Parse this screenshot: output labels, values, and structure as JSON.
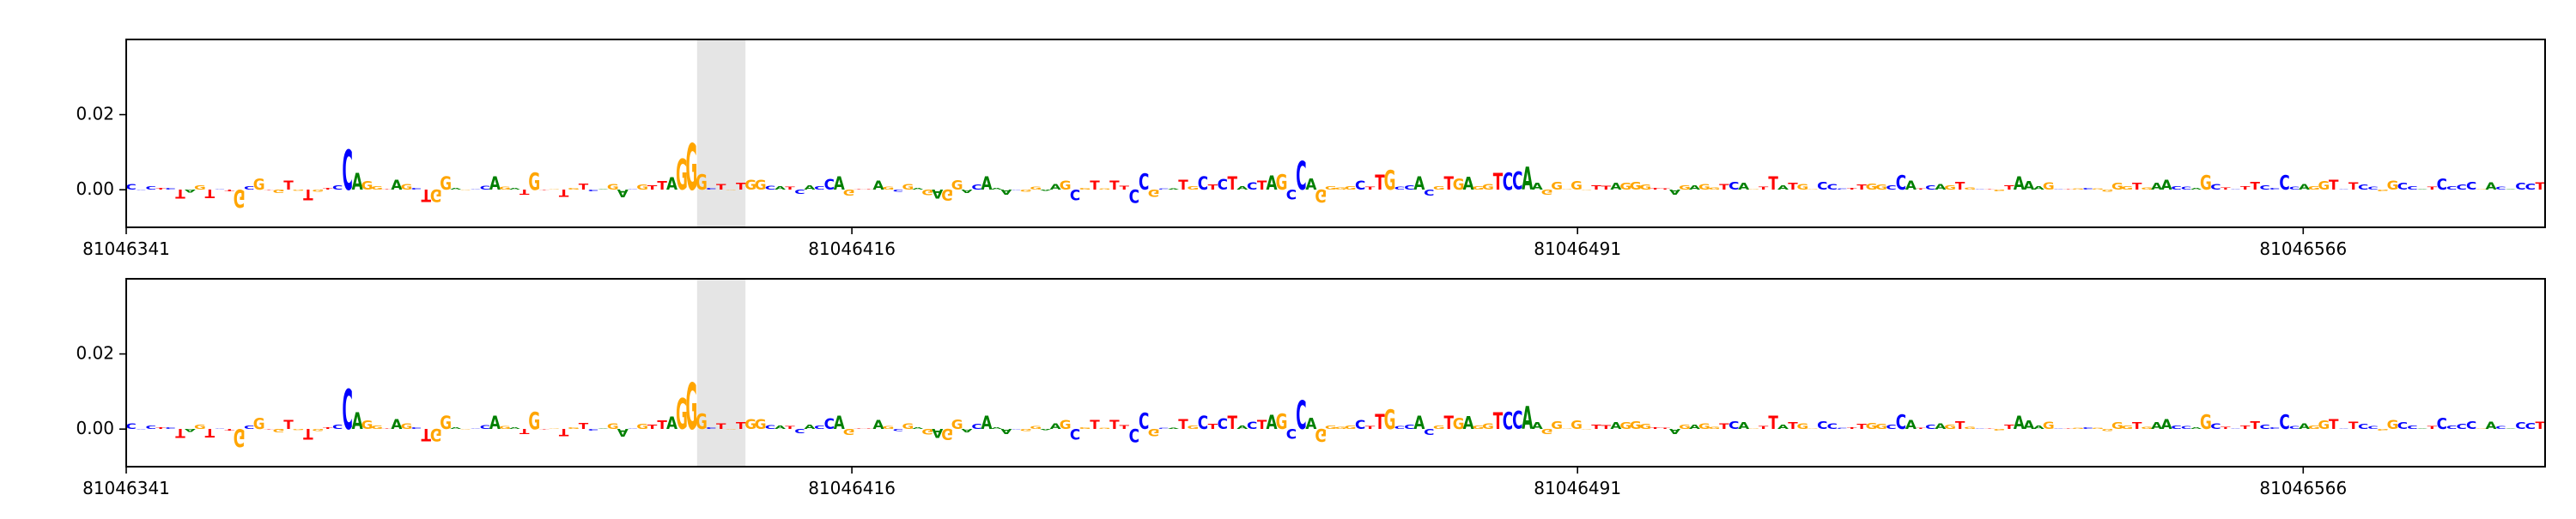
{
  "chart_data": [
    {
      "type": "sequence-logo",
      "track": "top",
      "ylim": [
        -0.01,
        0.04
      ],
      "ytick_labels": [
        "0.02",
        "0.00"
      ],
      "yticks": [
        0.02,
        0.0
      ],
      "xlim": [
        81046341,
        81046591
      ],
      "xtick_labels": [
        "81046341",
        "81046416",
        "81046491",
        "81046566"
      ],
      "xticks": [
        81046341,
        81046416,
        81046491,
        "81046566"
      ],
      "highlight": {
        "start": 81046400,
        "end": 81046405
      },
      "sequence": "CCCTCTAGTCTGCGTGTGTGTCCAGGTAGCTGGAGCCAGATGTGTGTCAGACGTTAGGGCTGTGGCATCACCAGTTAGCGAGAGGACAAACGGAAGCGTGTTCCGCATGCTCTACTAGCCAGGGGCTTGCCACGTGAGGTCCAAGGGGGTTAGGGTTAGAGGTCAGTTATGGCCCTTGGCCATCAGTGCTGTAAAGCTGCGGGGTGAACCAGCTCTTCCCCAGGTCTCCGGCCATCCCCGACACCT",
      "scores": [
        0.0014,
        -0.0001,
        0.0008,
        0.0004,
        0.0004,
        -0.0023,
        -0.0007,
        0.0011,
        -0.0022,
        0.0001,
        -0.0005,
        -0.0048,
        0.0008,
        0.0029,
        -0.0001,
        -0.0008,
        0.0023,
        -0.0003,
        -0.0028,
        -0.0006,
        0.0005,
        0.0011,
        0.0107,
        0.0045,
        0.0022,
        0.0008,
        0.0001,
        0.0026,
        0.0015,
        0.0005,
        -0.0032,
        -0.0033,
        0.0035,
        0.0005,
        -0.0002,
        0.0001,
        0.001,
        0.0035,
        0.0007,
        0.0004,
        -0.0013,
        0.0046,
        -0.0001,
        0.0002,
        -0.0019,
        0.0005,
        0.0016,
        -0.0004,
        0.0001,
        0.0015,
        -0.0021,
        0.0001,
        0.0013,
        0.0012,
        0.0022,
        0.0032,
        0.0082,
        0.0124,
        0.0041,
        0.0005,
        0.0015,
        -0.0002,
        0.0018,
        0.0027,
        0.0026,
        0.001,
        0.0009,
        0.0007,
        -0.0012,
        0.0012,
        0.0008,
        0.0028,
        0.0035,
        -0.0016,
        0.0002,
        0.0002,
        0.0024,
        0.0007,
        -0.0006,
        0.0015,
        0.0004,
        -0.0014,
        -0.0024,
        -0.0029,
        0.0025,
        -0.0009,
        0.0013,
        0.0035,
        0.0004,
        -0.0013,
        -0.0002,
        -0.0006,
        0.0007,
        -0.0003,
        0.0014,
        0.0024,
        -0.0028,
        0.0004,
        0.0024,
        0.0003,
        0.0023,
        0.001,
        -0.0036,
        0.0043,
        -0.0019,
        0.0003,
        0.0003,
        0.0026,
        0.0008,
        0.0035,
        0.0013,
        0.0028,
        0.0036,
        0.0008,
        0.0019,
        0.0024,
        0.0037,
        0.0042,
        -0.0027,
        0.0075,
        0.003,
        -0.0034,
        0.0009,
        0.0006,
        0.0008,
        0.0024,
        0.0007,
        0.004,
        0.0052,
        0.0007,
        0.0011,
        0.0035,
        -0.0016,
        0.0008,
        0.0036,
        0.0029,
        0.0034,
        0.0008,
        0.0014,
        0.0045,
        0.0046,
        0.0047,
        0.0061,
        0.0017,
        -0.0013,
        0.0021,
        0.0002,
        0.0022,
        -0.0001,
        0.0012,
        0.001,
        0.0017,
        0.0018,
        0.0021,
        0.0013,
        0.0004,
        0.0003,
        -0.0013,
        0.0012,
        0.0011,
        0.0014,
        0.0006,
        0.0014,
        0.0021,
        0.0017,
        0.0001,
        0.0007,
        0.0036,
        0.0011,
        0.0017,
        0.0014,
        0.0001,
        0.0021,
        0.0015,
        0.0003,
        0.0005,
        0.0013,
        0.0016,
        0.0013,
        0.0012,
        0.0039,
        0.0024,
        0.0003,
        0.0012,
        0.0014,
        0.0012,
        0.0021,
        0.0006,
        0.0002,
        0.0001,
        -0.0004,
        0.0012,
        0.0036,
        0.0022,
        0.0009,
        0.0019,
        0.0001,
        0.0001,
        0.0003,
        0.0005,
        0.0003,
        -0.0006,
        0.0018,
        0.0009,
        0.0018,
        0.0006,
        0.0017,
        0.0027,
        0.0009,
        0.0007,
        0.0004,
        0.0038,
        0.0014,
        0.0006,
        0.0001,
        0.0009,
        0.0021,
        0.0011,
        0.0005,
        0.0038,
        0.0007,
        0.0014,
        0.0008,
        0.0022,
        0.0026,
        0.0001,
        0.0019,
        0.0013,
        0.0007,
        -0.0004,
        0.0024,
        0.0018,
        0.0009,
        0.0001,
        0.0007,
        0.0029,
        0.0008,
        0.0013,
        0.0021,
        0.0002,
        0.0019,
        0.0007,
        0.0001,
        0.0017,
        0.0016,
        0.0019,
        0.0009,
        0.0013,
        0.0018,
        -0.0029
      ]
    },
    {
      "type": "sequence-logo",
      "track": "bottom",
      "ylim": [
        -0.01,
        0.04
      ],
      "ytick_labels": [
        "0.02",
        "0.00"
      ],
      "yticks": [
        0.02,
        0.0
      ],
      "xlim": [
        81046341,
        81046591
      ],
      "xtick_labels": [
        "81046341",
        "81046416",
        "81046491",
        "81046566"
      ],
      "xticks": [
        81046341,
        81046416,
        81046491,
        81046566
      ],
      "highlight": {
        "start": 81046400,
        "end": 81046405
      },
      "sequence": "CCCTCTAGTCTGCGTGTGTGTCCAGGTAGCTGGAGCCAGATGTGTGTCAGACGTTAGGGCTGTGGCATCACCAGTTAGCGAGAGGACAAACGGAAGCGTGTTCCGCATGCTCTACTAGCCAGGGGCTTGCCACGTGAGGTCCAAGGGGGTTAGGGTTAGAGGTCAGTTATGGCCCTTGGCCATCAGTGCTGTAAAGCTGCGGGGTGAACCAGCTCTTCCCCAGGTCTCCGGCCATCCCCGACACCT",
      "scores": [
        0.0014,
        -0.0001,
        0.0008,
        0.0004,
        0.0004,
        -0.0023,
        -0.0007,
        0.0011,
        -0.0022,
        0.0001,
        -0.0005,
        -0.0048,
        0.0008,
        0.0029,
        -0.0001,
        -0.0008,
        0.0023,
        -0.0003,
        -0.0028,
        -0.0006,
        0.0005,
        0.0011,
        0.0107,
        0.0045,
        0.0022,
        0.0008,
        0.0001,
        0.0026,
        0.0015,
        0.0005,
        -0.0032,
        -0.0033,
        0.0035,
        0.0005,
        -0.0002,
        0.0001,
        0.001,
        0.0035,
        0.0007,
        0.0004,
        -0.0013,
        0.0046,
        -0.0001,
        0.0002,
        -0.0019,
        0.0005,
        0.0016,
        -0.0004,
        0.0001,
        0.0015,
        -0.0021,
        0.0001,
        0.0013,
        0.0012,
        0.0022,
        0.0032,
        0.0082,
        0.0124,
        0.0041,
        0.0005,
        0.0015,
        -0.0002,
        0.0018,
        0.0027,
        0.0026,
        0.001,
        0.0009,
        0.0007,
        -0.0012,
        0.0012,
        0.0008,
        0.0028,
        0.0035,
        -0.0016,
        0.0002,
        0.0002,
        0.0024,
        0.0007,
        -0.0006,
        0.0015,
        0.0004,
        -0.0014,
        -0.0024,
        -0.0029,
        0.0025,
        -0.0009,
        0.0013,
        0.0035,
        0.0004,
        -0.0013,
        -0.0002,
        -0.0006,
        0.0007,
        -0.0003,
        0.0014,
        0.0024,
        -0.0028,
        0.0004,
        0.0024,
        0.0003,
        0.0023,
        0.001,
        -0.0036,
        0.0043,
        -0.0019,
        0.0003,
        0.0003,
        0.0026,
        0.0008,
        0.0035,
        0.0013,
        0.0028,
        0.0036,
        0.0008,
        0.0019,
        0.0024,
        0.0037,
        0.0042,
        -0.0027,
        0.0075,
        0.003,
        -0.0034,
        0.0009,
        0.0006,
        0.0008,
        0.0024,
        0.0007,
        0.004,
        0.0052,
        0.0007,
        0.0011,
        0.0035,
        -0.0016,
        0.0008,
        0.0036,
        0.0029,
        0.0034,
        0.0008,
        0.0014,
        0.0045,
        0.0046,
        0.0047,
        0.0061,
        0.0017,
        -0.0013,
        0.0021,
        0.0002,
        0.0022,
        -0.0001,
        0.0012,
        0.001,
        0.0017,
        0.0018,
        0.0021,
        0.0013,
        0.0004,
        0.0003,
        -0.0013,
        0.0012,
        0.0011,
        0.0014,
        0.0006,
        0.0014,
        0.0021,
        0.0017,
        0.0001,
        0.0007,
        0.0036,
        0.0011,
        0.0017,
        0.0014,
        0.0001,
        0.0021,
        0.0015,
        0.0003,
        0.0005,
        0.0013,
        0.0016,
        0.0013,
        0.0012,
        0.0039,
        0.0024,
        0.0003,
        0.0012,
        0.0014,
        0.0012,
        0.0021,
        0.0006,
        0.0002,
        0.0001,
        -0.0004,
        0.0012,
        0.0036,
        0.0022,
        0.0009,
        0.0019,
        0.0001,
        0.0001,
        0.0003,
        0.0005,
        0.0003,
        -0.0006,
        0.0018,
        0.0009,
        0.0018,
        0.0006,
        0.0017,
        0.0027,
        0.0009,
        0.0007,
        0.0004,
        0.0038,
        0.0014,
        0.0006,
        0.0001,
        0.0009,
        0.0021,
        0.0011,
        0.0005,
        0.0038,
        0.0007,
        0.0014,
        0.0008,
        0.0022,
        0.0026,
        0.0001,
        0.0019,
        0.0013,
        0.0007,
        -0.0004,
        0.0024,
        0.0018,
        0.0009,
        0.0001,
        0.0007,
        0.0029,
        0.0008,
        0.0013,
        0.0021,
        0.0002,
        0.0019,
        0.0007,
        0.0001,
        0.0017,
        0.0016,
        0.0019,
        0.0009,
        0.0013,
        0.0018,
        -0.0029
      ]
    }
  ],
  "colors": {
    "A": "#008000",
    "C": "#0000ff",
    "G": "#ffa500",
    "T": "#ff0000",
    "highlight": "#e5e5e5",
    "axis": "#000000"
  }
}
